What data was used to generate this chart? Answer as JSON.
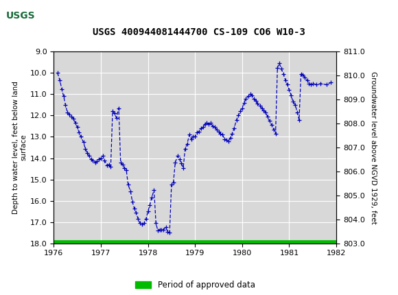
{
  "title": "USGS 400944081444700 CS-109 CO6 W10-3",
  "ylabel_left": "Depth to water level, feet below land\nsurface",
  "ylabel_right": "Groundwater level above NGVD 1929, feet",
  "ylim_left": [
    18.0,
    9.0
  ],
  "ylim_right": [
    803.0,
    811.0
  ],
  "xlim": [
    1976.0,
    1982.0
  ],
  "xticks": [
    1976,
    1977,
    1978,
    1979,
    1980,
    1981,
    1982
  ],
  "yticks_left": [
    9.0,
    10.0,
    11.0,
    12.0,
    13.0,
    14.0,
    15.0,
    16.0,
    17.0,
    18.0
  ],
  "yticks_right": [
    803.0,
    804.0,
    805.0,
    806.0,
    807.0,
    808.0,
    809.0,
    810.0,
    811.0
  ],
  "line_color": "#0000BB",
  "background_color": "#ffffff",
  "plot_bg_color": "#d8d8d8",
  "grid_color": "#ffffff",
  "header_color": "#1a6b3c",
  "legend_label": "Period of approved data",
  "legend_color": "#00bb00",
  "data_x": [
    1976.08,
    1976.13,
    1976.17,
    1976.21,
    1976.25,
    1976.29,
    1976.33,
    1976.38,
    1976.42,
    1976.46,
    1976.5,
    1976.54,
    1976.58,
    1976.63,
    1976.67,
    1976.71,
    1976.75,
    1976.79,
    1976.83,
    1976.88,
    1976.92,
    1976.96,
    1977.0,
    1977.04,
    1977.08,
    1977.13,
    1977.17,
    1977.21,
    1977.25,
    1977.29,
    1977.33,
    1977.38,
    1977.42,
    1977.46,
    1977.5,
    1977.54,
    1977.58,
    1977.63,
    1977.67,
    1977.71,
    1977.75,
    1977.79,
    1977.83,
    1977.88,
    1977.92,
    1977.96,
    1978.0,
    1978.04,
    1978.08,
    1978.13,
    1978.17,
    1978.21,
    1978.25,
    1978.29,
    1978.33,
    1978.38,
    1978.42,
    1978.46,
    1978.5,
    1978.54,
    1978.58,
    1978.63,
    1978.67,
    1978.71,
    1978.75,
    1978.79,
    1978.83,
    1978.88,
    1978.92,
    1978.96,
    1979.0,
    1979.04,
    1979.08,
    1979.13,
    1979.17,
    1979.21,
    1979.25,
    1979.29,
    1979.33,
    1979.38,
    1979.42,
    1979.46,
    1979.5,
    1979.54,
    1979.58,
    1979.63,
    1979.67,
    1979.71,
    1979.75,
    1979.79,
    1979.83,
    1979.88,
    1979.92,
    1979.96,
    1980.0,
    1980.04,
    1980.08,
    1980.13,
    1980.17,
    1980.21,
    1980.25,
    1980.29,
    1980.33,
    1980.38,
    1980.42,
    1980.46,
    1980.5,
    1980.54,
    1980.58,
    1980.63,
    1980.67,
    1980.71,
    1980.75,
    1980.79,
    1980.83,
    1980.88,
    1980.92,
    1980.96,
    1981.0,
    1981.04,
    1981.08,
    1981.13,
    1981.17,
    1981.21,
    1981.25,
    1981.29,
    1981.33,
    1981.38,
    1981.42,
    1981.46,
    1981.5,
    1981.58,
    1981.67,
    1981.79,
    1981.88
  ],
  "data_y": [
    10.0,
    10.35,
    10.75,
    11.1,
    11.5,
    11.85,
    11.95,
    12.05,
    12.15,
    12.35,
    12.55,
    12.8,
    13.0,
    13.25,
    13.55,
    13.75,
    13.9,
    14.05,
    14.1,
    14.2,
    14.15,
    14.05,
    14.0,
    13.9,
    14.1,
    14.35,
    14.3,
    14.4,
    11.8,
    11.9,
    12.1,
    11.65,
    14.2,
    14.3,
    14.45,
    14.55,
    15.25,
    15.55,
    16.05,
    16.35,
    16.55,
    16.85,
    17.05,
    17.1,
    17.05,
    16.85,
    16.5,
    16.2,
    15.85,
    15.5,
    17.05,
    17.4,
    17.35,
    17.35,
    17.35,
    17.25,
    17.45,
    17.5,
    15.25,
    15.15,
    14.2,
    13.9,
    14.05,
    14.25,
    14.45,
    13.55,
    13.35,
    12.9,
    13.1,
    13.0,
    13.0,
    12.8,
    12.75,
    12.6,
    12.55,
    12.4,
    12.35,
    12.4,
    12.35,
    12.5,
    12.55,
    12.65,
    12.75,
    12.85,
    12.9,
    13.1,
    13.15,
    13.2,
    13.05,
    12.85,
    12.6,
    12.2,
    12.0,
    11.8,
    11.65,
    11.4,
    11.2,
    11.1,
    11.0,
    11.05,
    11.2,
    11.3,
    11.45,
    11.55,
    11.65,
    11.75,
    11.85,
    12.05,
    12.25,
    12.45,
    12.65,
    12.85,
    9.75,
    9.55,
    9.8,
    10.05,
    10.35,
    10.55,
    10.8,
    11.05,
    11.35,
    11.5,
    11.85,
    12.2,
    10.05,
    10.1,
    10.2,
    10.35,
    10.5,
    10.55,
    10.5,
    10.55,
    10.5,
    10.55,
    10.45
  ]
}
